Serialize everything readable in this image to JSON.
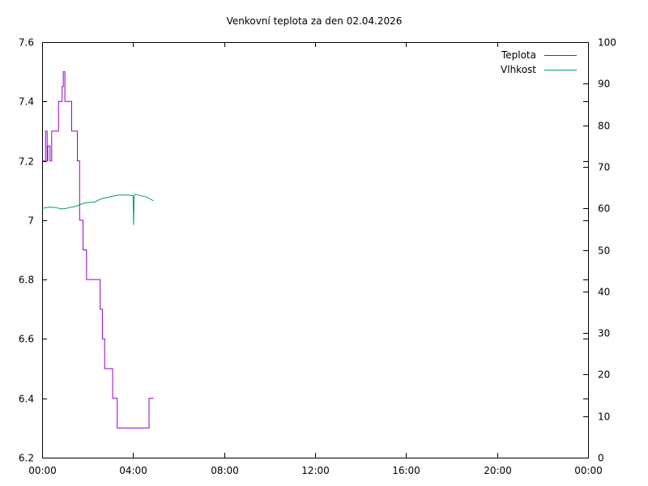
{
  "chart_data": {
    "type": "line",
    "title": "Venkovní teplota za den 02.04.2026",
    "xlabel": "",
    "ylabel": "",
    "y2label": "",
    "grid": false,
    "legend_position": "top-right",
    "x_ticks": [
      "00:00",
      "04:00",
      "08:00",
      "12:00",
      "16:00",
      "20:00",
      "00:00"
    ],
    "xlim_hours": [
      0,
      24
    ],
    "y_ticks": [
      "6.2",
      "6.4",
      "6.6",
      "6.8",
      "7",
      "7.2",
      "7.4",
      "7.6"
    ],
    "ylim": [
      6.2,
      7.6
    ],
    "y2_ticks": [
      "0",
      "10",
      "20",
      "30",
      "40",
      "50",
      "60",
      "70",
      "80",
      "90",
      "100"
    ],
    "y2lim": [
      0,
      100
    ],
    "series": [
      {
        "name": "Teplota",
        "color": "#9400d3",
        "axis": "y1",
        "step": true,
        "x": [
          0.0,
          0.15,
          0.22,
          0.25,
          0.35,
          0.42,
          0.45,
          0.72,
          0.88,
          0.93,
          1.0,
          1.05,
          1.3,
          1.55,
          1.65,
          1.8,
          1.95,
          2.55,
          2.65,
          2.75,
          3.1,
          3.3,
          4.7,
          4.9
        ],
        "values": [
          7.2,
          7.3,
          7.2,
          7.25,
          7.2,
          7.3,
          7.3,
          7.4,
          7.45,
          7.5,
          7.4,
          7.4,
          7.3,
          7.2,
          7.0,
          6.9,
          6.8,
          6.7,
          6.6,
          6.5,
          6.4,
          6.3,
          6.4,
          6.4
        ]
      },
      {
        "name": "Vlhkost",
        "color": "#009e73",
        "axis": "y2",
        "step": false,
        "x": [
          0.0,
          0.3,
          0.6,
          0.8,
          1.0,
          1.2,
          1.5,
          1.8,
          2.0,
          2.3,
          2.6,
          3.0,
          3.4,
          3.8,
          4.0,
          4.02,
          4.05,
          4.1,
          4.3,
          4.6,
          4.9
        ],
        "values": [
          60.0,
          60.3,
          60.2,
          59.9,
          59.9,
          60.2,
          60.5,
          61.2,
          61.4,
          61.5,
          62.3,
          62.8,
          63.2,
          63.2,
          63.0,
          56.0,
          63.0,
          63.4,
          63.1,
          62.7,
          61.8
        ]
      }
    ]
  }
}
